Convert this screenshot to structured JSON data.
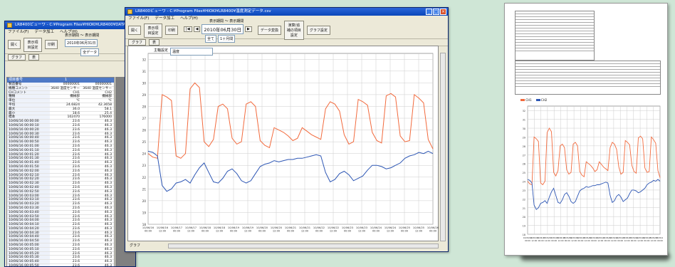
{
  "app": {
    "title": "LR8400ビューワ",
    "menu": [
      "ファイル(F)",
      "データ加工",
      "ヘルプ(H)"
    ],
    "toolbar": {
      "open": "開く",
      "display_settings": "表示項目設定",
      "print": "印刷",
      "data_convert": "データ変換",
      "calc_settings": "演算/追補の項目設定",
      "graph_settings": "グラフ設定"
    },
    "view_tabs": {
      "graph": "グラフ",
      "table": "表"
    },
    "period_label": "表示期間 ～ 表示期間",
    "date_value": "2010年06月30日",
    "range_left": "全て",
    "range_right": "1ヶ月間",
    "channel_label": "全データ"
  },
  "left_window": {
    "title": "LR8400ビューワ - C:¥Program Files¥HIOKI¥LR8400¥DATA.csv",
    "period_label": "表示期間 ～ 表示期間",
    "date_value": "2010年06月31日",
    "channel_select": "全データ",
    "table_header": [
      "項目番号",
      "1",
      ""
    ],
    "meta_rows": [
      [
        "製造番号",
        "00000001",
        "00000001"
      ],
      [
        "機種コメント",
        "3640 温度センサー",
        "3640 温度センサー"
      ],
      [
        "CHコメント",
        "CH1",
        "CH2"
      ],
      [
        "種類",
        "機械部",
        "機械部"
      ],
      [
        "単位",
        "℃",
        "℃"
      ],
      [
        "平均",
        "24.6824",
        "42.3658"
      ],
      [
        "最大",
        "36.0",
        "58.1"
      ],
      [
        "最小",
        "18.6",
        "25.4"
      ],
      [
        "標本",
        "102470",
        "176000"
      ]
    ],
    "data_rows": [
      [
        "10/06/16 00:00:00",
        "23.6",
        "46.3"
      ],
      [
        "10/06/16 00:00:10",
        "23.6",
        "46.3"
      ],
      [
        "10/06/16 00:00:20",
        "23.6",
        "46.3"
      ],
      [
        "10/06/16 00:00:30",
        "23.6",
        "46.3"
      ],
      [
        "10/06/16 00:00:40",
        "23.6",
        "46.3"
      ],
      [
        "10/06/16 00:00:50",
        "23.6",
        "46.3"
      ],
      [
        "10/06/16 00:01:00",
        "23.6",
        "46.3"
      ],
      [
        "10/06/16 00:01:10",
        "23.6",
        "46.3"
      ],
      [
        "10/06/16 00:01:20",
        "23.6",
        "46.3"
      ],
      [
        "10/06/16 00:01:30",
        "23.6",
        "46.3"
      ],
      [
        "10/06/16 00:01:40",
        "23.6",
        "46.3"
      ],
      [
        "10/06/16 00:01:50",
        "23.6",
        "46.3"
      ],
      [
        "10/06/16 00:02:00",
        "23.6",
        "46.3"
      ],
      [
        "10/06/16 00:02:10",
        "23.6",
        "46.3"
      ],
      [
        "10/06/16 00:02:20",
        "23.6",
        "46.3"
      ],
      [
        "10/06/16 00:02:30",
        "23.6",
        "46.3"
      ],
      [
        "10/06/16 00:02:40",
        "23.6",
        "46.3"
      ],
      [
        "10/06/16 00:02:50",
        "23.6",
        "46.3"
      ],
      [
        "10/06/16 00:03:00",
        "23.6",
        "46.3"
      ],
      [
        "10/06/16 00:03:10",
        "23.6",
        "46.3"
      ],
      [
        "10/06/16 00:03:20",
        "23.6",
        "46.3"
      ],
      [
        "10/06/16 00:03:30",
        "23.6",
        "46.3"
      ],
      [
        "10/06/16 00:03:40",
        "23.6",
        "46.3"
      ],
      [
        "10/06/16 00:03:50",
        "23.6",
        "46.3"
      ],
      [
        "10/06/16 00:04:00",
        "23.6",
        "46.3"
      ],
      [
        "10/06/16 00:04:10",
        "23.6",
        "46.3"
      ],
      [
        "10/06/16 00:04:20",
        "23.6",
        "46.3"
      ],
      [
        "10/06/16 00:04:30",
        "23.6",
        "46.3"
      ],
      [
        "10/06/16 00:04:40",
        "23.6",
        "46.3"
      ],
      [
        "10/06/16 00:04:50",
        "23.6",
        "46.3"
      ],
      [
        "10/06/16 00:05:00",
        "23.6",
        "46.3"
      ],
      [
        "10/06/16 00:05:10",
        "23.6",
        "46.3"
      ],
      [
        "10/06/16 00:05:20",
        "23.6",
        "46.3"
      ],
      [
        "10/06/16 00:05:30",
        "23.6",
        "46.3"
      ],
      [
        "10/06/16 00:05:40",
        "23.6",
        "46.3"
      ],
      [
        "10/06/16 00:05:50",
        "23.6",
        "46.3"
      ],
      [
        "10/06/16 00:06:00",
        "23.6",
        "46.3"
      ]
    ]
  },
  "main_window": {
    "title": "LR8400ビューワ - C:¥Program Files¥HIOKI¥LR8400¥温度測定データ.csv",
    "axis_selector_label": "主軸設定",
    "axis_selector_value": "温度",
    "scroll_label": "グラフ"
  },
  "print_page": {
    "legend": [
      "CH1",
      "CH2"
    ]
  },
  "colors": {
    "ch1": "#f26a3d",
    "ch2": "#2d56b4",
    "titlebar": "#0a46b8"
  },
  "chart_data": {
    "type": "line",
    "y_ticks": [
      18,
      19,
      20,
      21,
      22,
      23,
      24,
      25,
      26,
      27,
      28,
      29,
      30,
      31,
      32
    ],
    "ylim": [
      18,
      32.5
    ],
    "x_ticks": [
      "10/06/16 00:00",
      "10/06/16 12:00",
      "10/06/17 00:00",
      "10/06/17 12:00",
      "10/06/18 00:00",
      "10/06/18 12:00",
      "10/06/19 00:00",
      "10/06/19 12:00",
      "10/06/20 00:00",
      "10/06/20 12:00",
      "10/06/21 00:00",
      "10/06/21 12:00",
      "10/06/22 00:00",
      "10/06/22 12:00",
      "10/06/23 00:00",
      "10/06/23 12:00",
      "10/06/24 00:00",
      "10/06/24 12:00",
      "10/06/25 00:00",
      "10/06/25 12:00",
      "10/06/26 00:00"
    ],
    "series": [
      {
        "name": "CH1",
        "color": "#f26a3d",
        "values": [
          24.0,
          23.7,
          23.6,
          29.0,
          28.8,
          28.5,
          23.8,
          23.6,
          24.0,
          29.5,
          30.0,
          29.6,
          25.0,
          24.6,
          25.2,
          28.0,
          28.2,
          27.8,
          25.3,
          24.8,
          25.0,
          28.2,
          28.4,
          28.0,
          25.1,
          24.7,
          24.5,
          26.2,
          26.0,
          25.8,
          25.5,
          25.1,
          25.3,
          26.2,
          25.9,
          25.6,
          25.4,
          25.2,
          27.8,
          28.4,
          28.2,
          27.6,
          25.6,
          24.8,
          25.0,
          28.6,
          28.4,
          28.1,
          25.8,
          25.1,
          24.9,
          28.9,
          29.1,
          28.8,
          25.5,
          25.0,
          25.1,
          29.0,
          28.7,
          28.3,
          25.2,
          24.4
        ]
      },
      {
        "name": "CH2",
        "color": "#2d56b4",
        "values": [
          24.2,
          24.1,
          23.8,
          21.3,
          20.8,
          21.0,
          21.5,
          21.6,
          21.8,
          21.5,
          22.2,
          22.8,
          23.2,
          22.4,
          21.6,
          21.5,
          21.9,
          22.5,
          22.7,
          22.3,
          21.7,
          21.5,
          21.7,
          22.3,
          22.9,
          23.1,
          23.2,
          23.4,
          23.3,
          23.4,
          23.5,
          23.5,
          23.6,
          23.6,
          23.7,
          23.8,
          23.9,
          23.8,
          22.4,
          21.6,
          21.8,
          22.3,
          22.5,
          22.2,
          21.7,
          21.9,
          22.1,
          22.6,
          23.0,
          23.0,
          22.9,
          22.7,
          22.8,
          23.0,
          23.2,
          23.6,
          23.8,
          23.9,
          24.1,
          24.0,
          24.2,
          24.0
        ]
      }
    ],
    "grid": true
  }
}
